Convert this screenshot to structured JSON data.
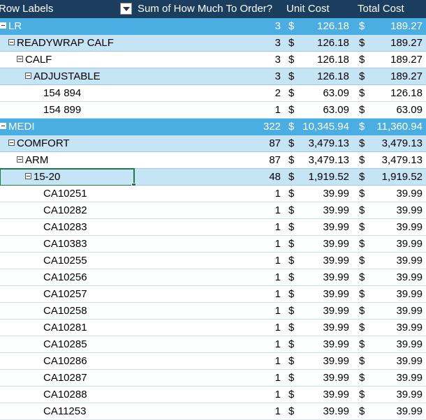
{
  "header": {
    "row_labels": "Row Labels",
    "sum_col": "Sum of How Much To Order?",
    "unit_col": "Unit Cost",
    "total_col": "Total Cost"
  },
  "rows": [
    {
      "level": 0,
      "label": "LR",
      "qty": "3",
      "unit": "126.18",
      "total": "189.27",
      "toggle": true
    },
    {
      "level": 1,
      "label": "READYWRAP CALF",
      "qty": "3",
      "unit": "126.18",
      "total": "189.27",
      "toggle": true
    },
    {
      "level": 2,
      "label": "CALF",
      "qty": "3",
      "unit": "126.18",
      "total": "189.27",
      "toggle": true
    },
    {
      "level": 3,
      "label": "ADJUSTABLE",
      "qty": "3",
      "unit": "126.18",
      "total": "189.27",
      "toggle": true
    },
    {
      "level": 4,
      "label": "154 894",
      "qty": "2",
      "unit": "63.09",
      "total": "126.18"
    },
    {
      "level": 4,
      "label": "154 899",
      "qty": "1",
      "unit": "63.09",
      "total": "63.09"
    },
    {
      "level": 0,
      "label": "MEDI",
      "qty": "322",
      "unit": "10,345.94",
      "total": "11,360.94",
      "toggle": true
    },
    {
      "level": 1,
      "label": "COMFORT",
      "qty": "87",
      "unit": "3,479.13",
      "total": "3,479.13",
      "toggle": true
    },
    {
      "level": 2,
      "label": "ARM",
      "qty": "87",
      "unit": "3,479.13",
      "total": "3,479.13",
      "toggle": true
    },
    {
      "level": 3,
      "label": "15-20",
      "qty": "48",
      "unit": "1,919.52",
      "total": "1,919.52",
      "toggle": true,
      "selected": true
    },
    {
      "level": 4,
      "label": "CA10251",
      "qty": "1",
      "unit": "39.99",
      "total": "39.99"
    },
    {
      "level": 4,
      "label": "CA10282",
      "qty": "1",
      "unit": "39.99",
      "total": "39.99"
    },
    {
      "level": 4,
      "label": "CA10283",
      "qty": "1",
      "unit": "39.99",
      "total": "39.99"
    },
    {
      "level": 4,
      "label": "CA10383",
      "qty": "1",
      "unit": "39.99",
      "total": "39.99"
    },
    {
      "level": 4,
      "label": "CA10255",
      "qty": "1",
      "unit": "39.99",
      "total": "39.99"
    },
    {
      "level": 4,
      "label": "CA10256",
      "qty": "1",
      "unit": "39.99",
      "total": "39.99"
    },
    {
      "level": 4,
      "label": "CA10257",
      "qty": "1",
      "unit": "39.99",
      "total": "39.99"
    },
    {
      "level": 4,
      "label": "CA10258",
      "qty": "1",
      "unit": "39.99",
      "total": "39.99"
    },
    {
      "level": 4,
      "label": "CA10281",
      "qty": "1",
      "unit": "39.99",
      "total": "39.99"
    },
    {
      "level": 4,
      "label": "CA10285",
      "qty": "1",
      "unit": "39.99",
      "total": "39.99"
    },
    {
      "level": 4,
      "label": "CA10286",
      "qty": "1",
      "unit": "39.99",
      "total": "39.99"
    },
    {
      "level": 4,
      "label": "CA10287",
      "qty": "1",
      "unit": "39.99",
      "total": "39.99"
    },
    {
      "level": 4,
      "label": "CA10288",
      "qty": "1",
      "unit": "39.99",
      "total": "39.99"
    },
    {
      "level": 4,
      "label": "CA11253",
      "qty": "1",
      "unit": "39.99",
      "total": "39.99"
    }
  ],
  "currency_symbol": "$",
  "colors": {
    "header_bg": "#1b3e5f",
    "level0_bg": "#4aaee3",
    "level1_bg": "#c5e4f6",
    "selection": "#1e7b45"
  }
}
